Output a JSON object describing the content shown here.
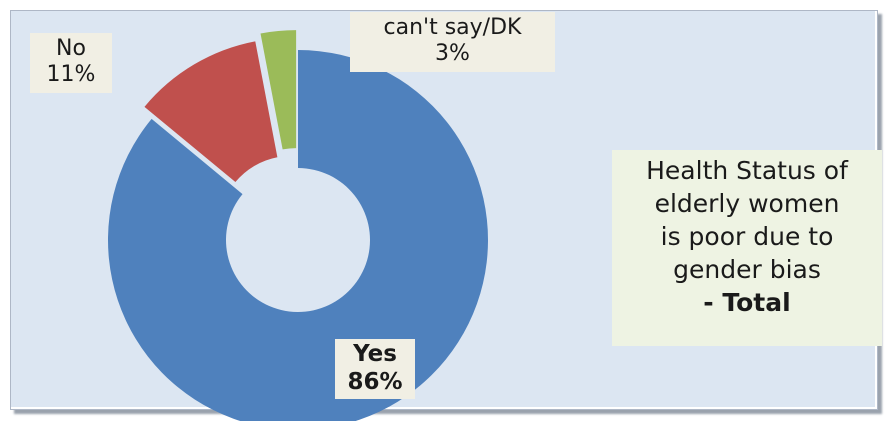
{
  "chart_data": {
    "type": "pie",
    "donut": true,
    "exploded": true,
    "title_lines": [
      "Health Status of",
      "elderly women",
      "is poor due to",
      "gender bias"
    ],
    "title_emphasis": "- Total",
    "slices": [
      {
        "label": "Yes",
        "value": 86,
        "display": "86%",
        "color": "#4f81bd"
      },
      {
        "label": "No",
        "value": 11,
        "display": "11%",
        "color": "#c0504d"
      },
      {
        "label": "can't say/DK",
        "value": 3,
        "display": "3%",
        "color": "#9bbb59"
      }
    ],
    "legend": "none",
    "background_color": "#dce6f2"
  }
}
